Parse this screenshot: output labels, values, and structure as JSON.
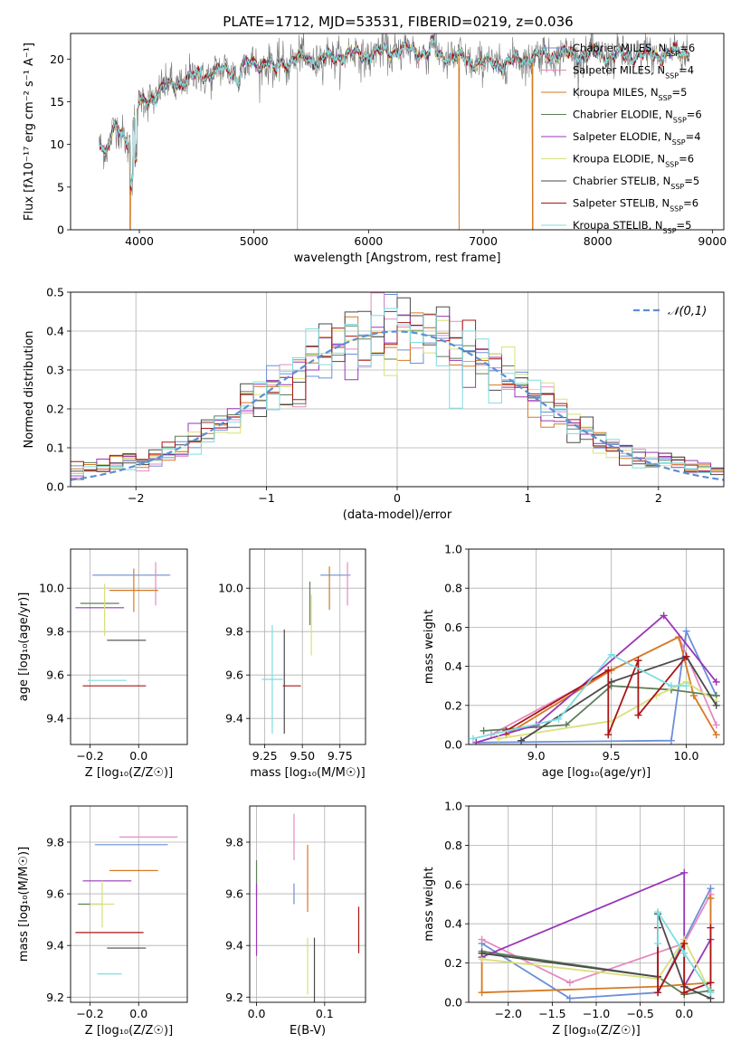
{
  "figure_title": "PLATE=1712, MJD=53531, FIBERID=0219, z=0.036",
  "palette": [
    "#6b8fd8",
    "#e58ac0",
    "#d67a22",
    "#5f7f5a",
    "#9a36b8",
    "#d9e07a",
    "#4a4a4a",
    "#aa1515",
    "#7fdde0"
  ],
  "chart_data": [
    {
      "id": "spectrum",
      "type": "line",
      "title": "PLATE=1712, MJD=53531, FIBERID=0219, z=0.036",
      "xlabel": "wavelength [Angstrom, rest frame]",
      "ylabel": "Flux [fλ10⁻¹⁷ erg cm⁻² s⁻¹ A⁻¹]",
      "xlim": [
        3400,
        9100
      ],
      "ylim": [
        0,
        23
      ],
      "xticks": [
        4000,
        5000,
        6000,
        7000,
        8000,
        9000
      ],
      "yticks": [
        0,
        5,
        10,
        15,
        20
      ],
      "grid": false,
      "legend_position": "upper-right",
      "legend": [
        "Chabrier MILES, N_SSP=6",
        "Salpeter MILES, N_SSP=4",
        "Kroupa MILES, N_SSP=5",
        "Chabrier ELODIE, N_SSP=6",
        "Salpeter ELODIE, N_SSP=4",
        "Kroupa ELODIE, N_SSP=6",
        "Chabrier STELIB, N_SSP=5",
        "Salpeter STELIB, N_SSP=6",
        "Kroupa STELIB, N_SSP=5"
      ],
      "data_envelope": {
        "x": [
          3650,
          3700,
          3800,
          3900,
          4000,
          4100,
          4200,
          4300,
          4400,
          4500,
          4700,
          5000,
          5200,
          5400,
          5600,
          5800,
          6000,
          6200,
          6400,
          6600,
          6800,
          7000,
          7200,
          7400,
          7600,
          7800,
          8000,
          8200,
          8400,
          8600,
          8800
        ],
        "y": [
          11,
          9,
          12,
          10.5,
          14.5,
          15.5,
          16.5,
          17,
          17.5,
          18,
          18.5,
          19.5,
          19.5,
          20,
          20,
          20.5,
          20.5,
          21,
          21,
          20.5,
          20,
          19.5,
          19.5,
          20.2,
          20.5,
          20.5,
          20.5,
          20.3,
          20.5,
          20.5,
          21
        ]
      },
      "model_cutoffs": [
        {
          "series": "Kroupa MILES, N_SSP=5",
          "x": 3920
        },
        {
          "series": "Kroupa MILES, N_SSP=5",
          "x": 6790
        },
        {
          "series": "Kroupa MILES, N_SSP=5",
          "x": 7430
        }
      ]
    },
    {
      "id": "residuals",
      "type": "step",
      "xlabel": "(data-model)/error",
      "ylabel": "Normed distribution",
      "xlim": [
        -2.5,
        2.5
      ],
      "ylim": [
        0,
        0.5
      ],
      "xticks": [
        -2,
        -1,
        0,
        1,
        2
      ],
      "yticks": [
        0,
        0.1,
        0.2,
        0.3,
        0.4,
        0.5
      ],
      "grid": true,
      "legend_position": "upper-right",
      "legend": [
        "𝒩(0,1)"
      ],
      "bin_width": 0.1,
      "bin_start": -2.5,
      "normal_pdf": {
        "mean": 0,
        "sigma": 1
      }
    },
    {
      "id": "age_vs_Z",
      "type": "errorbar",
      "xlabel": "Z [log₁₀(Z/Z☉)]",
      "ylabel": "age  [log₁₀(age/yr)]",
      "xlim": [
        -0.28,
        0.2
      ],
      "ylim": [
        9.28,
        10.18
      ],
      "xticks": [
        -0.2,
        0.0
      ],
      "yticks": [
        9.4,
        9.6,
        9.8,
        10.0
      ],
      "grid": true,
      "points": [
        {
          "x": -0.03,
          "xerr": 0.16,
          "y": 10.06,
          "yerr": 0.0
        },
        {
          "x": 0.07,
          "xerr": 0.0,
          "y": 10.02,
          "yerr": 0.1
        },
        {
          "x": -0.02,
          "xerr": 0.1,
          "y": 9.99,
          "yerr": 0.1
        },
        {
          "x": -0.16,
          "xerr": 0.08,
          "y": 9.93,
          "yerr": 0.0
        },
        {
          "x": -0.16,
          "xerr": 0.1,
          "y": 9.91,
          "yerr": 0.0
        },
        {
          "x": -0.14,
          "xerr": 0.0,
          "y": 9.9,
          "yerr": 0.12
        },
        {
          "x": -0.05,
          "xerr": 0.08,
          "y": 9.76,
          "yerr": 0.0
        },
        {
          "x": -0.1,
          "xerr": 0.13,
          "y": 9.55,
          "yerr": 0.0
        },
        {
          "x": -0.13,
          "xerr": 0.08,
          "y": 9.575,
          "yerr": 0.0
        }
      ]
    },
    {
      "id": "age_vs_mass",
      "type": "errorbar",
      "xlabel": "mass [log₁₀(M/M☉)]",
      "ylabel": "",
      "xlim": [
        9.15,
        9.92
      ],
      "ylim": [
        9.28,
        10.18
      ],
      "xticks": [
        9.25,
        9.5,
        9.75
      ],
      "yticks": [
        9.4,
        9.6,
        9.8,
        10.0
      ],
      "grid": true,
      "points": [
        {
          "x": 9.72,
          "xerr": 0.1,
          "y": 10.06,
          "yerr": 0.0
        },
        {
          "x": 9.8,
          "xerr": 0.0,
          "y": 10.02,
          "yerr": 0.1
        },
        {
          "x": 9.68,
          "xerr": 0.0,
          "y": 10.0,
          "yerr": 0.1
        },
        {
          "x": 9.55,
          "xerr": 0.0,
          "y": 9.93,
          "yerr": 0.1
        },
        {
          "x": 9.65,
          "xerr": 0.0,
          "y": 9.91,
          "yerr": 0.0
        },
        {
          "x": 9.56,
          "xerr": 0.0,
          "y": 9.83,
          "yerr": 0.14
        },
        {
          "x": 9.38,
          "xerr": 0.0,
          "y": 9.57,
          "yerr": 0.24
        },
        {
          "x": 9.43,
          "xerr": 0.06,
          "y": 9.55,
          "yerr": 0.0
        },
        {
          "x": 9.3,
          "xerr": 0.07,
          "y": 9.58,
          "yerr": 0.25
        }
      ]
    },
    {
      "id": "mass_weight_vs_age",
      "type": "line",
      "xlabel": "age  [log₁₀(age/yr)]",
      "ylabel": "mass weight",
      "xlim": [
        8.55,
        10.25
      ],
      "ylim": [
        0,
        1
      ],
      "xticks": [
        9.0,
        9.5,
        10.0
      ],
      "yticks": [
        0,
        0.2,
        0.4,
        0.6,
        0.8,
        1.0
      ],
      "grid": true,
      "series": [
        {
          "x": [
            8.6,
            9.9,
            10.0,
            10.2
          ],
          "y": [
            0.01,
            0.02,
            0.58,
            0.25
          ]
        },
        {
          "x": [
            8.7,
            9.5,
            9.95,
            10.2
          ],
          "y": [
            0.05,
            0.38,
            0.55,
            0.1
          ]
        },
        {
          "x": [
            8.8,
            9.5,
            9.95,
            10.05,
            10.2
          ],
          "y": [
            0.05,
            0.38,
            0.55,
            0.25,
            0.05
          ]
        },
        {
          "x": [
            8.65,
            9.2,
            9.5,
            9.9,
            10.2
          ],
          "y": [
            0.07,
            0.1,
            0.3,
            0.28,
            0.25
          ]
        },
        {
          "x": [
            8.6,
            9.0,
            9.85,
            10.2
          ],
          "y": [
            0.01,
            0.1,
            0.66,
            0.32
          ]
        },
        {
          "x": [
            8.75,
            9.5,
            9.8,
            10.0,
            10.2
          ],
          "y": [
            0.03,
            0.12,
            0.25,
            0.32,
            0.22
          ]
        },
        {
          "x": [
            8.9,
            9.5,
            10.0,
            10.2
          ],
          "y": [
            0.02,
            0.32,
            0.45,
            0.2
          ]
        },
        {
          "x": [
            8.8,
            9.48,
            9.48,
            9.68,
            9.68,
            10.0
          ],
          "y": [
            0.07,
            0.38,
            0.05,
            0.43,
            0.15,
            0.45
          ]
        },
        {
          "x": [
            8.58,
            9.15,
            9.5,
            9.9,
            10.0
          ],
          "y": [
            0.03,
            0.13,
            0.46,
            0.3,
            0.3
          ]
        }
      ]
    },
    {
      "id": "mass_vs_Z",
      "type": "errorbar",
      "xlabel": "Z [log₁₀(Z/Z☉)]",
      "ylabel": "mass [log₁₀(M/M☉)]",
      "xlim": [
        -0.28,
        0.2
      ],
      "ylim": [
        9.18,
        9.94
      ],
      "xticks": [
        -0.2,
        0.0
      ],
      "yticks": [
        9.2,
        9.4,
        9.6,
        9.8
      ],
      "grid": true,
      "points": [
        {
          "x": -0.03,
          "xerr": 0.15,
          "y": 9.79,
          "yerr": 0.0
        },
        {
          "x": 0.04,
          "xerr": 0.12,
          "y": 9.82,
          "yerr": 0.0
        },
        {
          "x": -0.02,
          "xerr": 0.1,
          "y": 9.69,
          "yerr": 0.0
        },
        {
          "x": -0.2,
          "xerr": 0.05,
          "y": 9.56,
          "yerr": 0.0
        },
        {
          "x": -0.13,
          "xerr": 0.1,
          "y": 9.65,
          "yerr": 0.0
        },
        {
          "x": -0.15,
          "xerr": 0.05,
          "y": 9.56,
          "yerr": 0.09
        },
        {
          "x": -0.05,
          "xerr": 0.08,
          "y": 9.39,
          "yerr": 0.0
        },
        {
          "x": -0.12,
          "xerr": 0.14,
          "y": 9.45,
          "yerr": 0.0
        },
        {
          "x": -0.12,
          "xerr": 0.05,
          "y": 9.29,
          "yerr": 0.0
        }
      ]
    },
    {
      "id": "mass_vs_EBV",
      "type": "errorbar",
      "xlabel": "E(B-V)",
      "ylabel": "",
      "xlim": [
        -0.01,
        0.16
      ],
      "ylim": [
        9.18,
        9.94
      ],
      "xticks": [
        0.0,
        0.1
      ],
      "yticks": [
        9.2,
        9.4,
        9.6,
        9.8
      ],
      "grid": true,
      "points": [
        {
          "x": 0.055,
          "xerr": 0.0,
          "y": 9.6,
          "yerr": 0.04
        },
        {
          "x": 0.055,
          "xerr": 0.0,
          "y": 9.82,
          "yerr": 0.09
        },
        {
          "x": 0.075,
          "xerr": 0.0,
          "y": 9.66,
          "yerr": 0.13
        },
        {
          "x": 0.0,
          "xerr": 0.0,
          "y": 9.66,
          "yerr": 0.07
        },
        {
          "x": 0.0,
          "xerr": 0.0,
          "y": 9.5,
          "yerr": 0.14
        },
        {
          "x": 0.075,
          "xerr": 0.0,
          "y": 9.32,
          "yerr": 0.11
        },
        {
          "x": 0.085,
          "xerr": 0.0,
          "y": 9.3,
          "yerr": 0.13
        },
        {
          "x": 0.15,
          "xerr": 0.0,
          "y": 9.46,
          "yerr": 0.09
        },
        {
          "x": 0.0,
          "xerr": 0.0,
          "y": 9.45,
          "yerr": 0.0
        }
      ]
    },
    {
      "id": "mass_weight_vs_Z",
      "type": "line",
      "xlabel": "Z [log₁₀(Z/Z☉)]",
      "ylabel": "mass weight",
      "xlim": [
        -2.45,
        0.45
      ],
      "ylim": [
        0,
        1
      ],
      "xticks": [
        -2.0,
        -1.5,
        -1.0,
        -0.5,
        0.0
      ],
      "yticks": [
        0,
        0.2,
        0.4,
        0.6,
        0.8,
        1.0
      ],
      "grid": true,
      "series": [
        {
          "x": [
            -2.3,
            -1.3,
            -0.3,
            0.3,
            0.3
          ],
          "y": [
            0.3,
            0.02,
            0.05,
            0.58,
            0.05
          ]
        },
        {
          "x": [
            -2.3,
            -1.3,
            0.0,
            0.3
          ],
          "y": [
            0.32,
            0.1,
            0.3,
            0.55
          ]
        },
        {
          "x": [
            -2.3,
            -2.3,
            -0.3,
            0.3,
            0.3
          ],
          "y": [
            0.25,
            0.05,
            0.08,
            0.1,
            0.53
          ]
        },
        {
          "x": [
            -2.3,
            -0.3,
            0.0,
            0.3
          ],
          "y": [
            0.26,
            0.13,
            0.04,
            0.06
          ]
        },
        {
          "x": [
            -2.3,
            0.0,
            0.0,
            0.3
          ],
          "y": [
            0.23,
            0.66,
            0.08,
            0.32
          ]
        },
        {
          "x": [
            -2.3,
            -0.3,
            0.0,
            0.3
          ],
          "y": [
            0.22,
            0.12,
            0.32,
            0.05
          ]
        },
        {
          "x": [
            -2.3,
            -0.3,
            -0.3,
            0.0,
            0.3
          ],
          "y": [
            0.25,
            0.13,
            0.45,
            0.08,
            0.02
          ]
        },
        {
          "x": [
            -0.3,
            -0.3,
            0.0,
            0.0,
            0.3,
            0.3
          ],
          "y": [
            0.38,
            0.05,
            0.3,
            0.05,
            0.1,
            0.38
          ]
        },
        {
          "x": [
            -0.3,
            -0.3,
            0.0,
            0.3
          ],
          "y": [
            0.3,
            0.46,
            0.25,
            0.05
          ]
        }
      ]
    }
  ]
}
